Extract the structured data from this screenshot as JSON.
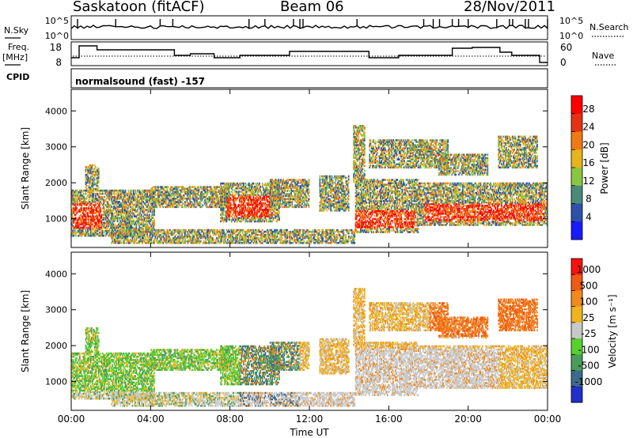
{
  "header": {
    "station": "Saskatoon (fitACF)",
    "beam": "Beam 06",
    "date": "28/Nov/2011"
  },
  "top_panels": {
    "nsky_label": "N.Sky",
    "nsky_ticks": [
      "10^5",
      "10^0"
    ],
    "nsearch_label": "N.Search",
    "nsearch_ticks": [
      "10^5",
      "10^0"
    ],
    "freq_label": "Freq.",
    "freq_unit": "[MHz]",
    "freq_ticks": [
      "18",
      "8"
    ],
    "nave_label": "Nave",
    "nave_ticks": [
      "60",
      "0"
    ],
    "cpid_label": "CPID",
    "cpid_text": "normalsound (fast) -157"
  },
  "chart_data": [
    {
      "type": "heatmap",
      "name": "power",
      "ylabel": "Slant Range [km]",
      "ylim": [
        200,
        4600
      ],
      "yticks": [
        "1000",
        "2000",
        "3000",
        "4000"
      ],
      "colorbar_label": "Power [dB]",
      "colorbar_ticks": [
        "4",
        "8",
        "12",
        "16",
        "20",
        "24",
        "28"
      ],
      "colors": [
        "#1a1aff",
        "#2f50a8",
        "#4a8a78",
        "#8ac640",
        "#e6b41e",
        "#f07a12",
        "#e63212",
        "#ff0000"
      ]
    },
    {
      "type": "heatmap",
      "name": "velocity",
      "ylabel": "Slant Range [km]",
      "ylim": [
        200,
        4600
      ],
      "yticks": [
        "1000",
        "2000",
        "3000",
        "4000"
      ],
      "colorbar_label": "Velocity [m s⁻¹]",
      "colorbar_ticks": [
        "1000",
        "500",
        "100",
        "25",
        "-25",
        "-100",
        "-500",
        "-1000"
      ],
      "colors": [
        "#2030c8",
        "#3c6a8c",
        "#4a9c5a",
        "#58d030",
        "#c8c8c8",
        "#eeb41e",
        "#f08a1e",
        "#f05a14",
        "#ff1010"
      ]
    }
  ],
  "x_axis": {
    "ticks": [
      "00:00",
      "04:00",
      "08:00",
      "12:00",
      "16:00",
      "20:00",
      "00:00"
    ],
    "label": "Time UT"
  }
}
